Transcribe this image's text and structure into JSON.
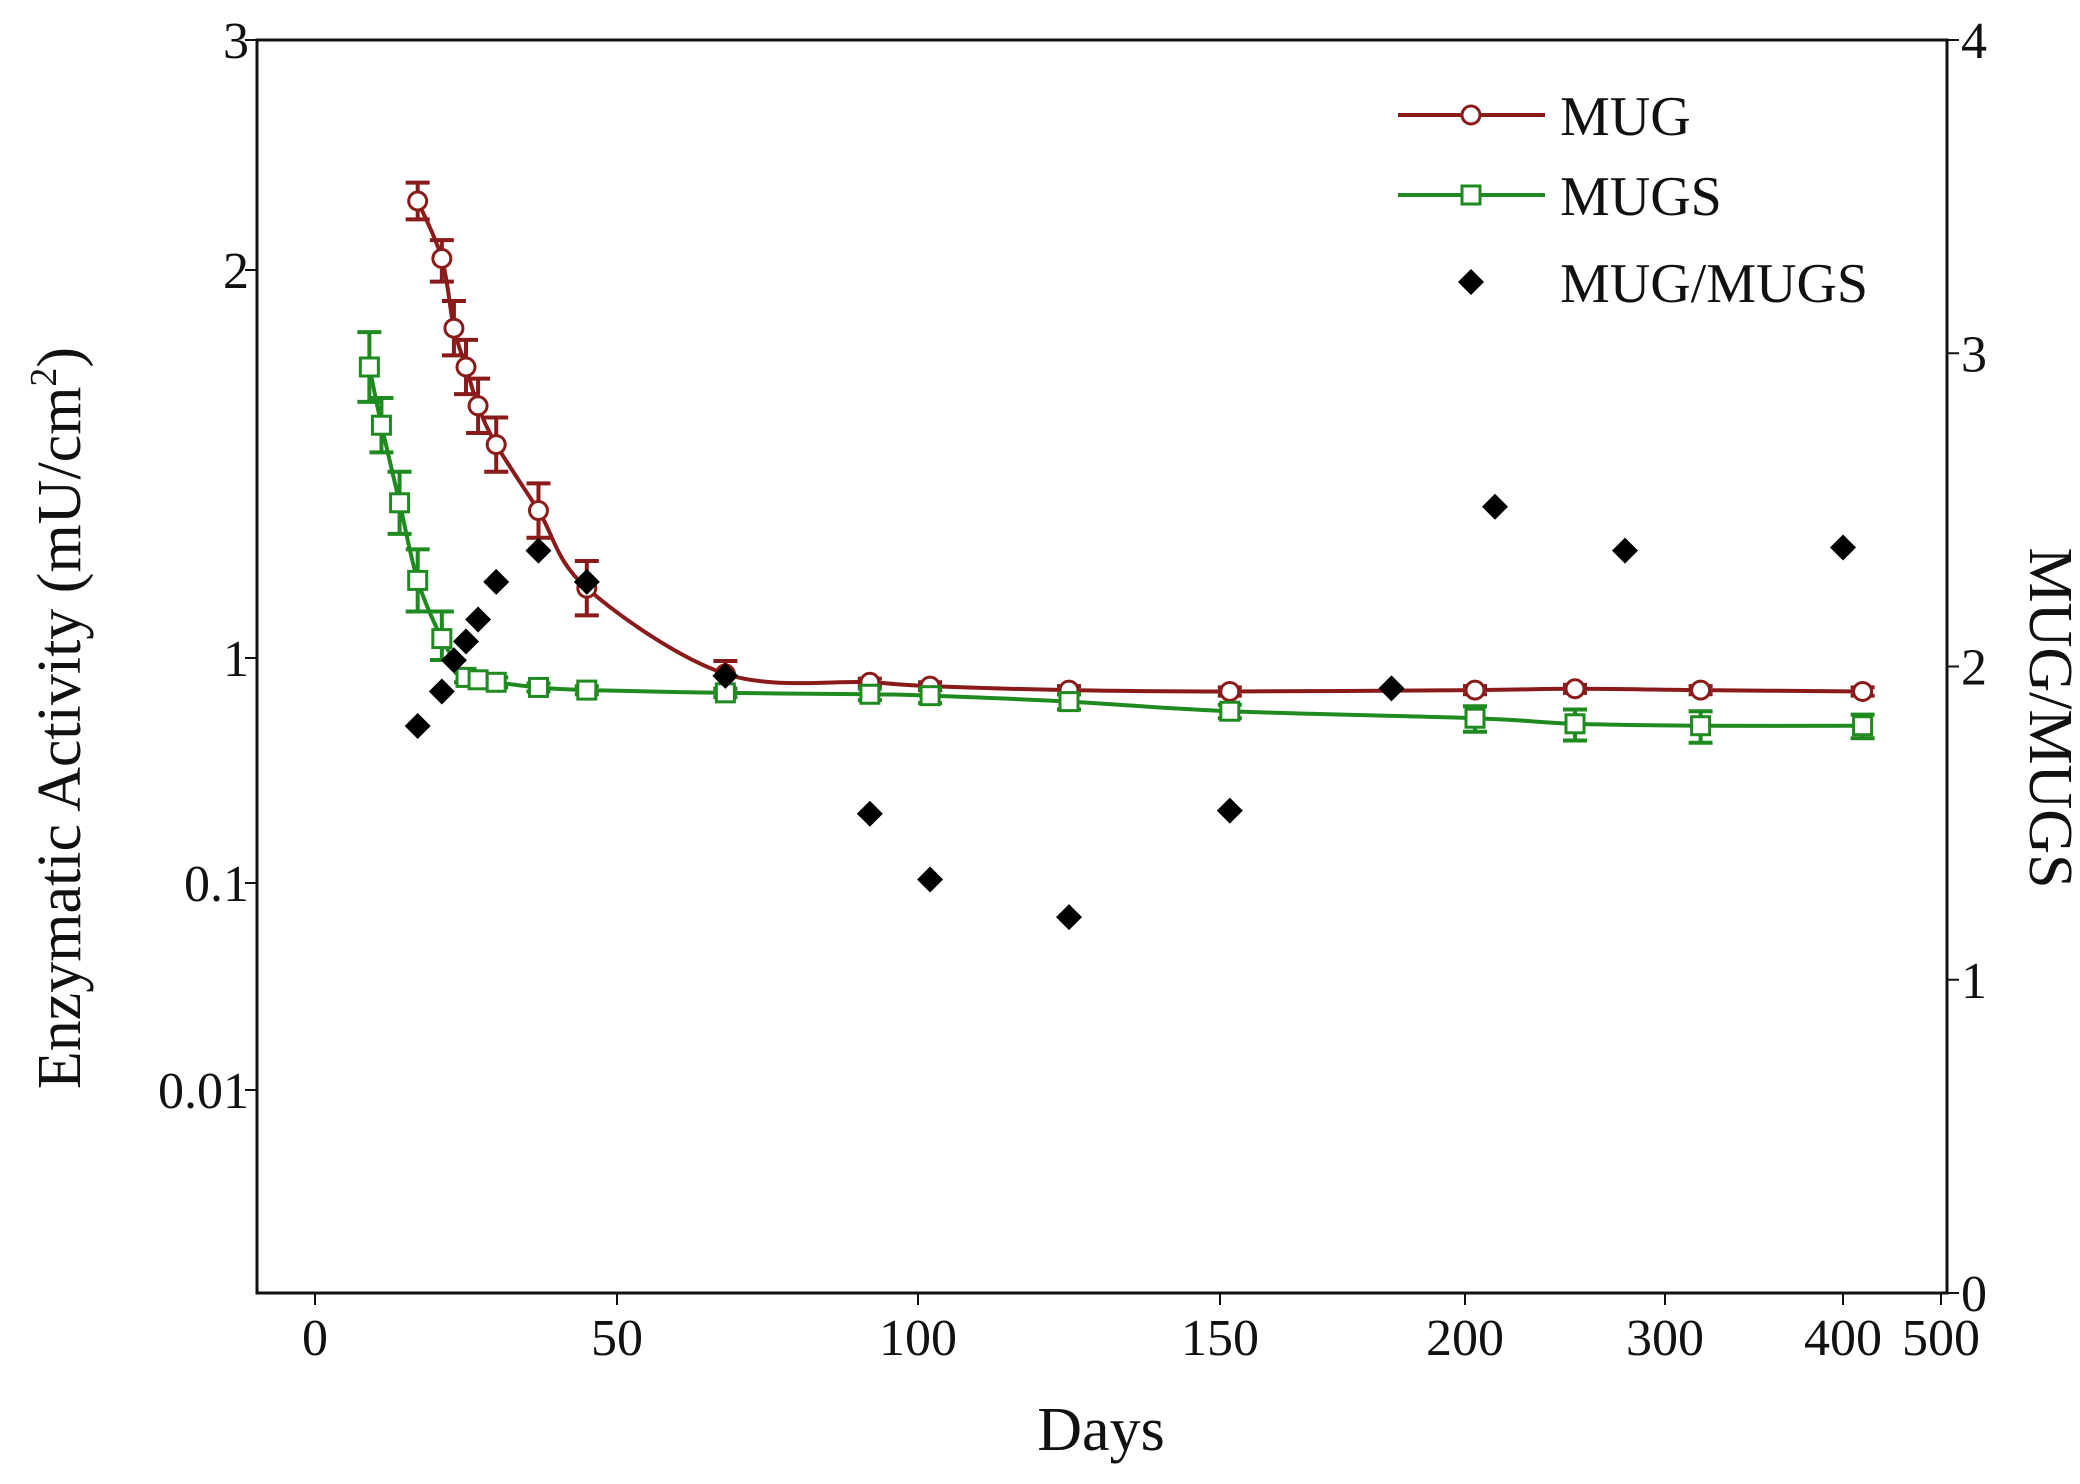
{
  "chart_data": {
    "type": "line",
    "title": "",
    "xlabel": "Days",
    "ylabel_left": "Enzymatic Activity (mU/cm",
    "ylabel_left_sup": "2",
    "ylabel_left_end": ")",
    "ylabel_right": "MUG/MUGS",
    "x_ticks": [
      "0",
      "50",
      "100",
      "150",
      "200",
      "300",
      "400",
      "500"
    ],
    "y_left_ticks": [
      "0.01",
      "0.1",
      "1",
      "2",
      "3"
    ],
    "y_right_ticks": [
      "0",
      "1",
      "2",
      "3",
      "4"
    ],
    "y_right_lim": [
      0,
      4
    ],
    "colors": {
      "MUG": "#8b1a1a",
      "MUGS": "#1f8a1f",
      "MUG/MUGS": "#000000"
    },
    "legend": [
      "MUG",
      "MUGS",
      "MUG/MUGS"
    ],
    "series": [
      {
        "name": "MUG",
        "axis": "left",
        "marker": "open-circle",
        "x": [
          17,
          21,
          23,
          25,
          27,
          30,
          37,
          45,
          68,
          92,
          102,
          125,
          152,
          205,
          255,
          320,
          420
        ],
        "y": [
          2.3,
          2.05,
          1.85,
          1.75,
          1.65,
          1.55,
          1.38,
          1.18,
          0.85,
          0.78,
          0.75,
          0.72,
          0.71,
          0.72,
          0.73,
          0.72,
          0.71
        ],
        "err": [
          0.08,
          0.08,
          0.07,
          0.07,
          0.07,
          0.07,
          0.07,
          0.07,
          0.12,
          0.03,
          0.03,
          0.03,
          0.03,
          0.03,
          0.03,
          0.03,
          0.03
        ]
      },
      {
        "name": "MUGS",
        "axis": "left",
        "marker": "open-square",
        "x": [
          9,
          11,
          14,
          17,
          21,
          25,
          27,
          30,
          37,
          45,
          68,
          92,
          102,
          125,
          152,
          205,
          255,
          320,
          420
        ],
        "y": [
          1.75,
          1.6,
          1.4,
          1.2,
          1.05,
          0.82,
          0.8,
          0.78,
          0.74,
          0.72,
          0.7,
          0.69,
          0.68,
          0.64,
          0.58,
          0.54,
          0.51,
          0.5,
          0.5
        ],
        "err": [
          0.09,
          0.07,
          0.08,
          0.08,
          0.07,
          0.04,
          0.04,
          0.04,
          0.03,
          0.03,
          0.03,
          0.04,
          0.05,
          0.05,
          0.04,
          0.07,
          0.08,
          0.08,
          0.06
        ]
      },
      {
        "name": "MUG/MUGS",
        "axis": "right",
        "marker": "filled-diamond",
        "x": [
          17,
          21,
          23,
          25,
          27,
          30,
          37,
          45,
          68,
          92,
          102,
          125,
          152,
          185,
          215,
          280,
          400
        ],
        "y": [
          1.81,
          1.92,
          2.02,
          2.08,
          2.15,
          2.27,
          2.37,
          2.27,
          1.97,
          1.53,
          1.32,
          1.2,
          1.54,
          1.93,
          2.51,
          2.37,
          2.38
        ]
      }
    ]
  }
}
